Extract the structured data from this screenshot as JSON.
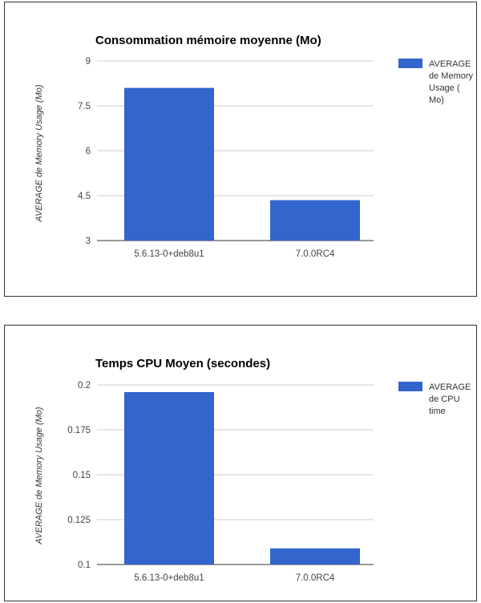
{
  "colors": {
    "bar": "#3366cc",
    "gridline": "#cccccc",
    "baseline": "#333333",
    "panel_border": "#333333"
  },
  "chart_data": [
    {
      "type": "bar",
      "title": "Consommation mémoire moyenne (Mo)",
      "xlabel": "",
      "ylabel": "AVERAGE de Memory Usage (Mo)",
      "categories": [
        "5.6.13-0+deb8u1",
        "7.0.0RC4"
      ],
      "series": [
        {
          "name": "AVERAGE de Memory Usage ( Mo)",
          "legend_lines": [
            "AVERAGE",
            "de Memory",
            "Usage (",
            "Mo)"
          ],
          "values": [
            8.1,
            4.35
          ]
        }
      ],
      "ylim": [
        3,
        9
      ],
      "yticks": [
        "3",
        "4.5",
        "6",
        "7.5",
        "9"
      ],
      "grid": true,
      "legend": "right"
    },
    {
      "type": "bar",
      "title": "Temps CPU Moyen (secondes)",
      "xlabel": "",
      "ylabel": "AVERAGE de Memory Usage (Mo)",
      "categories": [
        "5.6.13-0+deb8u1",
        "7.0.0RC4"
      ],
      "series": [
        {
          "name": "AVERAGE de CPU time",
          "legend_lines": [
            "AVERAGE",
            "de CPU",
            "time"
          ],
          "values": [
            0.196,
            0.109
          ]
        }
      ],
      "ylim": [
        0.1,
        0.2
      ],
      "yticks": [
        "0.1",
        "0.125",
        "0.15",
        "0.175",
        "0.2"
      ],
      "grid": true,
      "legend": "right"
    }
  ]
}
